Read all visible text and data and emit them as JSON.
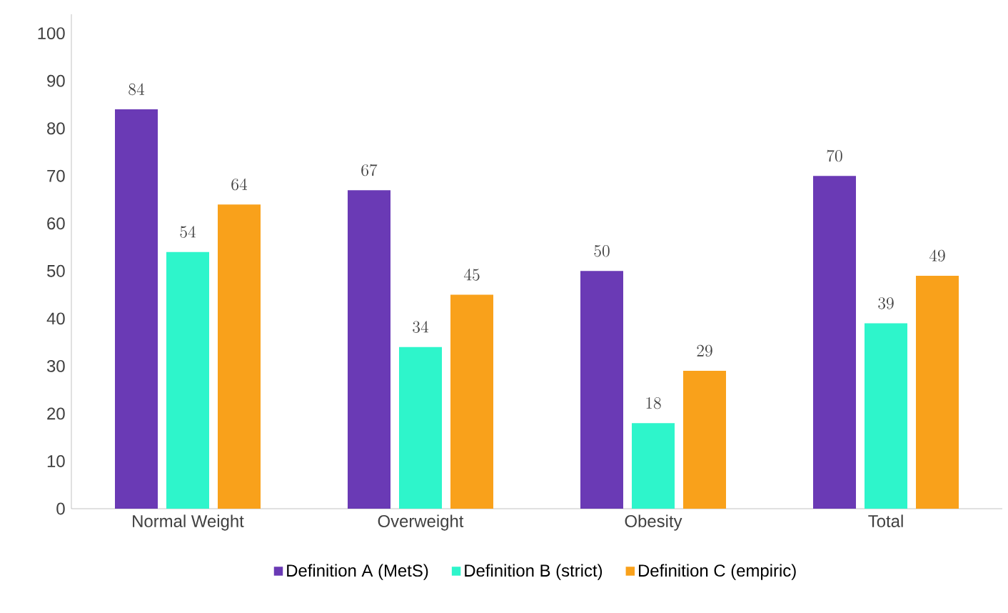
{
  "chart_data": {
    "type": "bar",
    "categories": [
      "Normal Weight",
      "Overweight",
      "Obesity",
      "Total"
    ],
    "series": [
      {
        "name": "Definition A (MetS)",
        "color": "#6a3ab5",
        "values": [
          84,
          67,
          50,
          70
        ]
      },
      {
        "name": "Definition B (strict)",
        "color": "#2ef5cb",
        "values": [
          54,
          34,
          18,
          39
        ]
      },
      {
        "name": "Definition C (empiric)",
        "color": "#f9a11b",
        "values": [
          64,
          45,
          29,
          49
        ]
      }
    ],
    "ylim": [
      0,
      104
    ],
    "yticks": [
      0,
      10,
      20,
      30,
      40,
      50,
      60,
      70,
      80,
      90,
      100
    ],
    "data_labels": true,
    "legend": "bottom"
  }
}
